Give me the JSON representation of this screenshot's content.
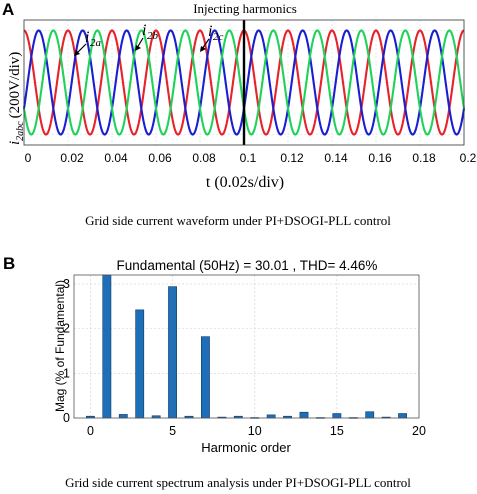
{
  "panel_a": {
    "panel_label": "A",
    "annotation": "Injecting harmonics",
    "ylabel_main": "i",
    "ylabel_sub": "2abc",
    "ylabel_rest": "(200V/div)",
    "xlabel": "t (0.02s/div)",
    "curve_labels": [
      {
        "main": "i",
        "sub": "2a"
      },
      {
        "main": "i",
        "sub": "2b"
      },
      {
        "main": "i",
        "sub": "2c"
      }
    ],
    "caption": "Grid side current waveform under PI+DSOGI-PLL control"
  },
  "panel_b": {
    "panel_label": "B",
    "title": "Fundamental (50Hz) = 30.01 , THD= 4.46%",
    "caption": "Grid side current spectrum analysis under PI+DSOGI-PLL control"
  },
  "colors": {
    "phase_a": "#e8222b",
    "phase_b": "#1a1fd0",
    "phase_c": "#1fd35a",
    "bar": "#1f6fb8",
    "marker": "#000000"
  },
  "chart_data": [
    {
      "type": "line",
      "x": [
        0,
        0.2
      ],
      "xlim": [
        0,
        0.2
      ],
      "xticks": [
        "0",
        "0.02",
        "0.04",
        "0.06",
        "0.08",
        "0.1",
        "0.12",
        "0.14",
        "0.16",
        "0.18",
        "0.2"
      ],
      "frequency_hz": 50,
      "series": [
        {
          "name": "i2a",
          "amplitude_div": 1,
          "phase_deg": 90
        },
        {
          "name": "i2b",
          "amplitude_div": 1,
          "phase_deg": -30
        },
        {
          "name": "i2c",
          "amplitude_div": 1,
          "phase_deg": 210
        }
      ],
      "event_time": 0.1,
      "xlabel": "t (0.02s/div)",
      "ylabel": "i2abc (200V/div)",
      "grid": true
    },
    {
      "type": "bar",
      "title": "Fundamental (50Hz) = 30.01 , THD= 4.46%",
      "categories": [
        0,
        1,
        2,
        3,
        4,
        5,
        6,
        7,
        8,
        9,
        10,
        11,
        12,
        13,
        14,
        15,
        16,
        17,
        18,
        19
      ],
      "values": [
        0.04,
        3.2,
        0.08,
        2.42,
        0.05,
        2.94,
        0.04,
        1.82,
        0.02,
        0.04,
        0.01,
        0.07,
        0.04,
        0.13,
        0.01,
        0.1,
        0.01,
        0.14,
        0.02,
        0.1
      ],
      "xlim": [
        -1,
        20
      ],
      "ylim": [
        0,
        3.2
      ],
      "xticks": [
        0,
        5,
        10,
        15,
        20
      ],
      "yticks": [
        0,
        1,
        2,
        3
      ],
      "xlabel": "Harmonic order",
      "ylabel": "Mag (% of Fundamental)",
      "grid": true
    }
  ]
}
